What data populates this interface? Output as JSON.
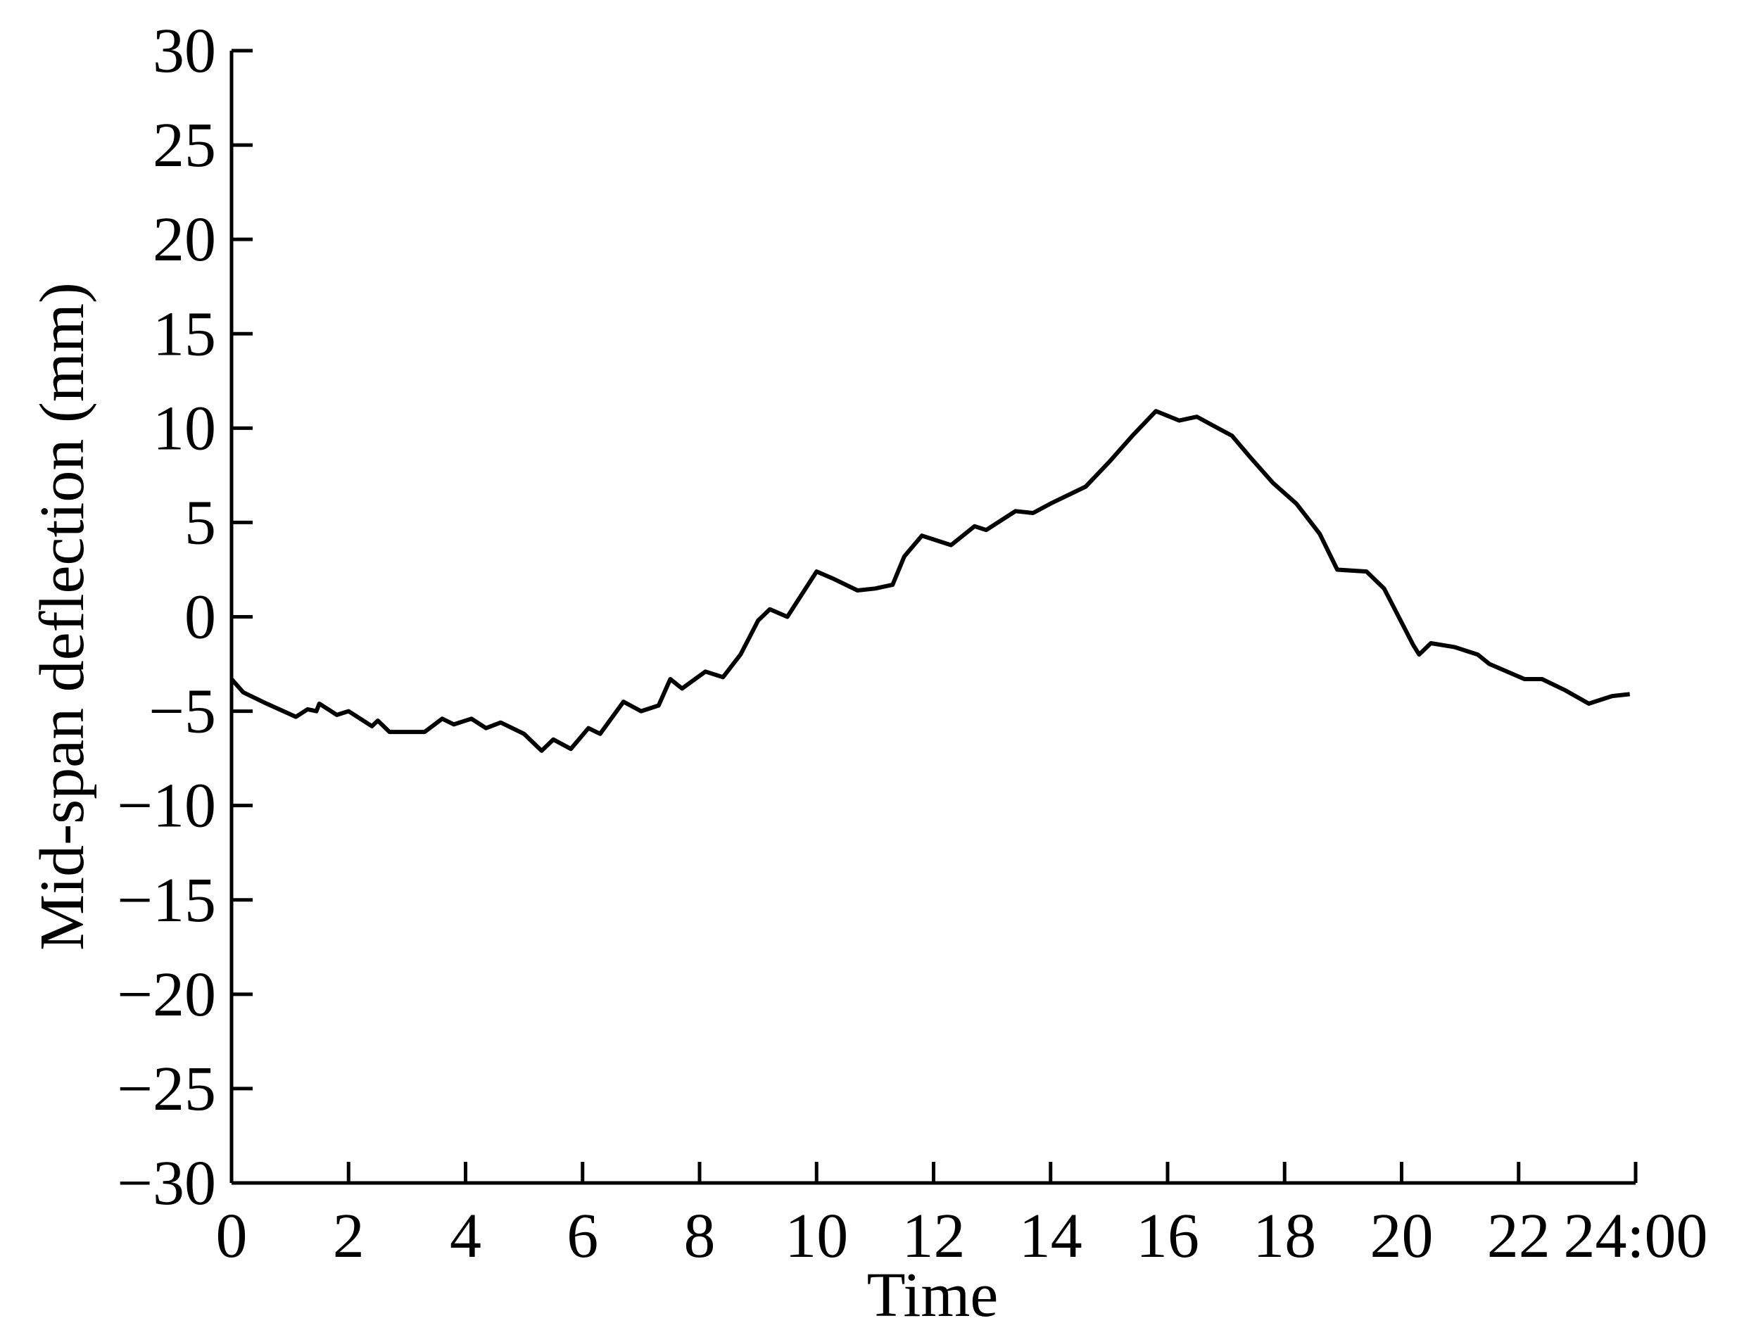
{
  "chart_data": {
    "type": "line",
    "x_label": "Time",
    "y_label": "Mid-span deflection (mm)",
    "xlim": [
      0,
      24
    ],
    "ylim": [
      -30,
      30
    ],
    "xticks": [
      0,
      2,
      4,
      6,
      8,
      10,
      12,
      14,
      16,
      18,
      20,
      22,
      {
        "value": 24,
        "label": "24:00"
      }
    ],
    "yticks": [
      {
        "value": -30,
        "label": "−30"
      },
      {
        "value": -25,
        "label": "−25"
      },
      {
        "value": -20,
        "label": "−20"
      },
      {
        "value": -15,
        "label": "−15"
      },
      {
        "value": -10,
        "label": "−10"
      },
      {
        "value": -5,
        "label": "−5"
      },
      0,
      5,
      10,
      15,
      20,
      25,
      30
    ],
    "series": [
      {
        "color": "#000000",
        "x": [
          0,
          0.2,
          0.6,
          1.1,
          1.3,
          1.45,
          1.5,
          1.8,
          2.0,
          2.4,
          2.5,
          2.7,
          3.3,
          3.6,
          3.8,
          4.1,
          4.35,
          4.6,
          5.0,
          5.3,
          5.5,
          5.8,
          6.1,
          6.3,
          6.7,
          7.0,
          7.3,
          7.5,
          7.7,
          8.1,
          8.4,
          8.7,
          8.9,
          9.0,
          9.2,
          9.5,
          10.0,
          10.3,
          10.7,
          11.0,
          11.3,
          11.5,
          11.8,
          12.3,
          12.7,
          12.9,
          13.4,
          13.7,
          14.0,
          14.6,
          15.0,
          15.4,
          15.8,
          16.2,
          16.5,
          16.8,
          17.1,
          17.4,
          17.8,
          18.2,
          18.6,
          18.9,
          19.4,
          19.7,
          20.2,
          20.3,
          20.5,
          20.9,
          21.3,
          21.5,
          22.1,
          22.4,
          22.8,
          23.2,
          23.6,
          23.9
        ],
        "values": [
          -3.3,
          -4.0,
          -4.6,
          -5.3,
          -4.9,
          -5.0,
          -4.6,
          -5.2,
          -5.0,
          -5.8,
          -5.5,
          -6.1,
          -6.1,
          -5.4,
          -5.7,
          -5.4,
          -5.9,
          -5.6,
          -6.2,
          -7.1,
          -6.5,
          -7.0,
          -5.9,
          -6.2,
          -4.5,
          -5.0,
          -4.7,
          -3.3,
          -3.8,
          -2.9,
          -3.2,
          -2.0,
          -0.8,
          -0.2,
          0.4,
          0.0,
          2.4,
          2.0,
          1.4,
          1.5,
          1.7,
          3.2,
          4.3,
          3.8,
          4.8,
          4.6,
          5.6,
          5.5,
          6.0,
          6.9,
          8.2,
          9.6,
          10.9,
          10.4,
          10.6,
          10.1,
          9.6,
          8.5,
          7.1,
          6.0,
          4.4,
          2.5,
          2.4,
          1.5,
          -1.5,
          -2.0,
          -1.4,
          -1.6,
          -2.0,
          -2.5,
          -3.3,
          -3.3,
          -3.9,
          -4.6,
          -4.2,
          -4.1
        ]
      }
    ]
  }
}
